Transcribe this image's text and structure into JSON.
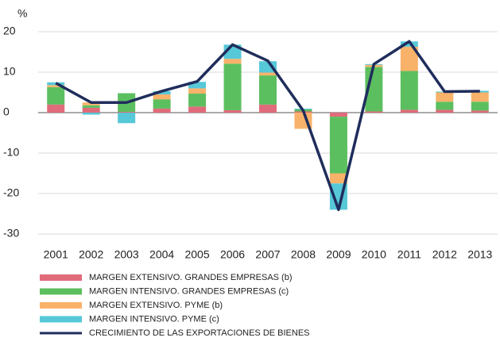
{
  "chart_data": {
    "type": "bar",
    "stacked": true,
    "unit_label": "%",
    "categories": [
      "2001",
      "2002",
      "2003",
      "2004",
      "2005",
      "2006",
      "2007",
      "2008",
      "2009",
      "2010",
      "2011",
      "2012",
      "2013"
    ],
    "series": [
      {
        "name": "MARGEN EXTENSIVO. GRANDES EMPRESAS (b)",
        "color": "#e06b7a",
        "values": [
          2,
          1.2,
          0.2,
          1,
          1.5,
          0.6,
          2,
          0.3,
          -1,
          0.3,
          0.7,
          0.7,
          0.5
        ]
      },
      {
        "name": "MARGEN INTENSIVO. GRANDES EMPRESAS (c)",
        "color": "#5cbf5f",
        "values": [
          4.3,
          0.6,
          4.6,
          2.3,
          3.2,
          11.5,
          7.2,
          0.5,
          -14,
          11,
          9.6,
          2,
          2.2
        ]
      },
      {
        "name": "MARGEN EXTENSIVO. PYME (b)",
        "color": "#f9b26a",
        "values": [
          0.5,
          0.7,
          0,
          1.2,
          1.3,
          1.2,
          0.7,
          -4,
          -2.5,
          0.5,
          6,
          2.3,
          2.3
        ]
      },
      {
        "name": "MARGEN INTENSIVO. PYME (c)",
        "color": "#56c8d8",
        "values": [
          0.7,
          -0.5,
          -2.6,
          0.8,
          1.6,
          3.5,
          2.8,
          0.2,
          -6.5,
          0.2,
          1.3,
          0.2,
          0.4
        ]
      },
      {
        "name": "CRECIMIENTO DE LAS EXPORTACIONES DE BIENES",
        "color": "#1f2d5c",
        "type": "line",
        "values": [
          7.3,
          2.5,
          2.5,
          5.3,
          7.7,
          16.8,
          12.8,
          0.5,
          -24,
          12,
          17.6,
          5.2,
          5.3
        ]
      }
    ],
    "ylim": [
      -30,
      20
    ],
    "yticks": [
      -30,
      -20,
      -10,
      0,
      10,
      20
    ],
    "grid": true
  }
}
